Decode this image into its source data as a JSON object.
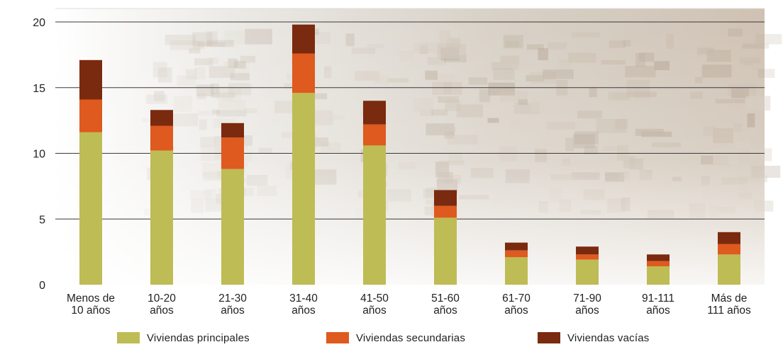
{
  "chart_data": {
    "type": "bar",
    "stacked": true,
    "categories": [
      [
        "Menos de",
        "10 años"
      ],
      [
        "10-20",
        "años"
      ],
      [
        "21-30",
        "años"
      ],
      [
        "31-40",
        "años"
      ],
      [
        "41-50",
        "años"
      ],
      [
        "51-60",
        "años"
      ],
      [
        "61-70",
        "años"
      ],
      [
        "71-90",
        "años"
      ],
      [
        "91-111",
        "años"
      ],
      [
        "Más de",
        "111 años"
      ]
    ],
    "series": [
      {
        "name": "Viviendas principales",
        "color": "#bebc55",
        "values": [
          11.6,
          10.2,
          8.8,
          14.6,
          10.6,
          5.1,
          2.1,
          1.9,
          1.4,
          2.3
        ]
      },
      {
        "name": "Viviendas secundarias",
        "color": "#de5a1e",
        "values": [
          2.5,
          1.9,
          2.4,
          3.0,
          1.6,
          0.9,
          0.5,
          0.4,
          0.4,
          0.8
        ]
      },
      {
        "name": "Viviendas vacías",
        "color": "#7a2a0e",
        "values": [
          3.0,
          1.2,
          1.1,
          2.2,
          1.8,
          1.2,
          0.6,
          0.6,
          0.5,
          0.9
        ]
      }
    ],
    "ylim": [
      0,
      20
    ],
    "yticks": [
      0,
      5,
      10,
      15,
      20
    ],
    "grid": true,
    "legend_position": "bottom"
  }
}
